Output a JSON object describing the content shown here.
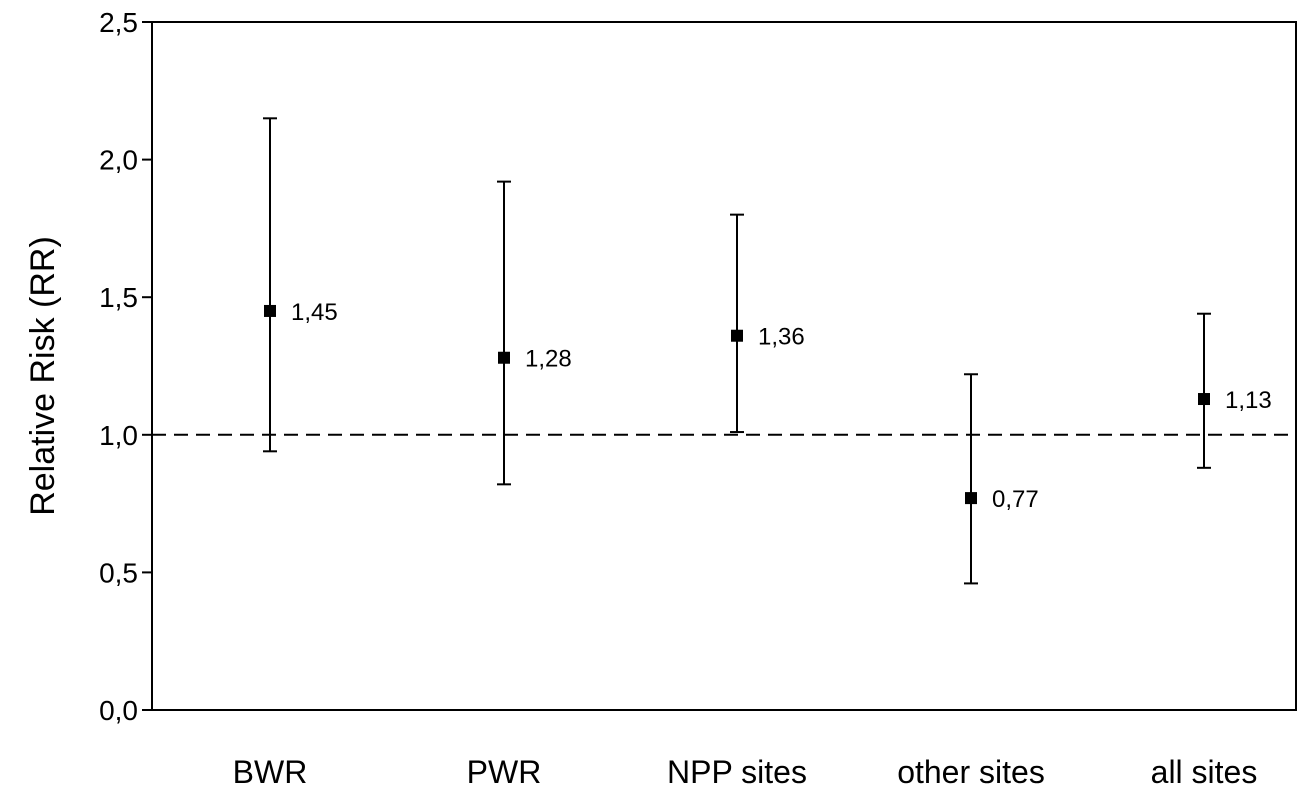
{
  "chart_data": {
    "type": "scatter",
    "title": "",
    "xlabel": "",
    "ylabel": "Relative Risk (RR)",
    "ylim": [
      0,
      2.5
    ],
    "y_ticks": [
      "0,0",
      "0,5",
      "1,0",
      "1,5",
      "2,0",
      "2,5"
    ],
    "categories": [
      "BWR",
      "PWR",
      "NPP sites",
      "other sites",
      "all sites"
    ],
    "points": [
      {
        "category": "BWR",
        "value": 1.45,
        "label": "1,45",
        "ci_low": 0.94,
        "ci_high": 2.15
      },
      {
        "category": "PWR",
        "value": 1.28,
        "label": "1,28",
        "ci_low": 0.82,
        "ci_high": 1.92
      },
      {
        "category": "NPP sites",
        "value": 1.36,
        "label": "1,36",
        "ci_low": 1.01,
        "ci_high": 1.8
      },
      {
        "category": "other sites",
        "value": 0.77,
        "label": "0,77",
        "ci_low": 0.46,
        "ci_high": 1.22
      },
      {
        "category": "all sites",
        "value": 1.13,
        "label": "1,13",
        "ci_low": 0.88,
        "ci_high": 1.44
      }
    ],
    "reference_line": {
      "value": 1.0,
      "style": "dashed"
    },
    "grid": false,
    "legend": "none"
  }
}
